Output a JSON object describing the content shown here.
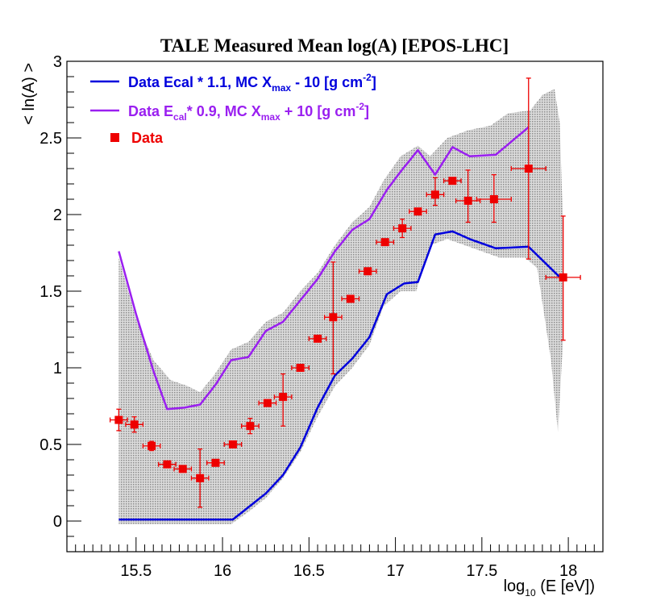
{
  "chart_data": {
    "type": "line",
    "title": "TALE Measured Mean log(A) [EPOS-LHC]",
    "xlabel": "log",
    "xlabel_sub": "10",
    "xlabel_tail": " (E [eV])",
    "ylabel": "< ln(A) >",
    "xlim": [
      15.1,
      18.2
    ],
    "ylim": [
      -0.2,
      3.0
    ],
    "x_major_ticks": [
      15.5,
      16,
      16.5,
      17,
      17.5,
      18
    ],
    "x_tick_labels": [
      "15.5",
      "16",
      "16.5",
      "17",
      "17.5",
      "18"
    ],
    "y_major_ticks": [
      0,
      0.5,
      1,
      1.5,
      2,
      2.5,
      3
    ],
    "y_tick_labels": [
      "0",
      "0.5",
      "1",
      "1.5",
      "2",
      "2.5",
      "3"
    ],
    "colors": {
      "blue": "#0000dd",
      "purple": "#9a1ff0",
      "data": "#ee0000",
      "band": "#b8b8b8"
    },
    "legend": {
      "blue": {
        "pre": "Data Ecal * 1.1,  MC X",
        "sub": "max",
        "mid": " - 10 [g cm",
        "sup": "-2",
        "post": "]"
      },
      "purple": {
        "pre": "Data E",
        "sub1": "cal",
        "mid1": "* 0.9,  MC X",
        "sub2": "max",
        "mid2": " + 10 [g cm",
        "sup": "-2",
        "post": "]"
      },
      "data": "Data"
    },
    "band": {
      "upper": [
        [
          15.4,
          1.72
        ],
        [
          15.5,
          1.32
        ],
        [
          15.6,
          1.05
        ],
        [
          15.7,
          0.92
        ],
        [
          15.8,
          0.88
        ],
        [
          15.87,
          0.84
        ],
        [
          15.95,
          0.95
        ],
        [
          16.05,
          1.12
        ],
        [
          16.15,
          1.17
        ],
        [
          16.25,
          1.3
        ],
        [
          16.35,
          1.36
        ],
        [
          16.45,
          1.5
        ],
        [
          16.55,
          1.62
        ],
        [
          16.65,
          1.8
        ],
        [
          16.75,
          1.95
        ],
        [
          16.85,
          2.05
        ],
        [
          16.93,
          2.22
        ],
        [
          17.03,
          2.38
        ],
        [
          17.13,
          2.45
        ],
        [
          17.2,
          2.38
        ],
        [
          17.3,
          2.5
        ],
        [
          17.42,
          2.55
        ],
        [
          17.55,
          2.58
        ],
        [
          17.65,
          2.66
        ],
        [
          17.78,
          2.68
        ],
        [
          17.85,
          2.78
        ],
        [
          17.92,
          2.82
        ],
        [
          17.95,
          2.6
        ],
        [
          17.97,
          1.9
        ]
      ],
      "lower": [
        [
          17.97,
          1.2
        ],
        [
          17.94,
          0.58
        ],
        [
          17.9,
          1.05
        ],
        [
          17.82,
          1.65
        ],
        [
          17.75,
          1.72
        ],
        [
          17.6,
          1.72
        ],
        [
          17.45,
          1.78
        ],
        [
          17.3,
          1.84
        ],
        [
          17.2,
          1.8
        ],
        [
          17.12,
          1.5
        ],
        [
          17.03,
          1.5
        ],
        [
          16.93,
          1.4
        ],
        [
          16.85,
          1.15
        ],
        [
          16.75,
          1.0
        ],
        [
          16.65,
          0.88
        ],
        [
          16.55,
          0.68
        ],
        [
          16.45,
          0.45
        ],
        [
          16.35,
          0.28
        ],
        [
          16.25,
          0.15
        ],
        [
          16.15,
          0.06
        ],
        [
          16.05,
          -0.02
        ],
        [
          15.9,
          -0.02
        ],
        [
          15.7,
          -0.02
        ],
        [
          15.5,
          -0.02
        ],
        [
          15.4,
          -0.02
        ]
      ]
    },
    "series": [
      {
        "name": "Data Ecal * 1.1, MC Xmax - 10 [g cm-2]",
        "key": "blue",
        "x": [
          15.4,
          15.5,
          15.6,
          15.7,
          15.8,
          15.9,
          16.0,
          16.06,
          16.15,
          16.25,
          16.35,
          16.45,
          16.55,
          16.65,
          16.75,
          16.85,
          16.95,
          17.05,
          17.13,
          17.23,
          17.33,
          17.43,
          17.58,
          17.77,
          17.97
        ],
        "y": [
          0.01,
          0.01,
          0.01,
          0.01,
          0.01,
          0.01,
          0.01,
          0.01,
          0.09,
          0.18,
          0.3,
          0.48,
          0.74,
          0.95,
          1.06,
          1.2,
          1.48,
          1.55,
          1.56,
          1.87,
          1.89,
          1.84,
          1.78,
          1.79,
          1.57
        ]
      },
      {
        "name": "Data Ecal * 0.9, MC Xmax + 10 [g cm-2]",
        "key": "purple",
        "x": [
          15.4,
          15.5,
          15.6,
          15.68,
          15.78,
          15.87,
          15.96,
          16.05,
          16.15,
          16.25,
          16.35,
          16.45,
          16.55,
          16.65,
          16.75,
          16.85,
          16.95,
          17.03,
          17.13,
          17.23,
          17.33,
          17.43,
          17.58,
          17.77
        ],
        "y": [
          1.76,
          1.35,
          0.98,
          0.73,
          0.74,
          0.76,
          0.89,
          1.05,
          1.07,
          1.24,
          1.3,
          1.44,
          1.58,
          1.76,
          1.9,
          1.97,
          2.16,
          2.28,
          2.42,
          2.26,
          2.44,
          2.38,
          2.39,
          2.57
        ]
      }
    ],
    "data_points": {
      "name": "Data",
      "x": [
        15.4,
        15.49,
        15.59,
        15.68,
        15.77,
        15.87,
        15.96,
        16.06,
        16.16,
        16.26,
        16.35,
        16.45,
        16.55,
        16.64,
        16.74,
        16.84,
        16.94,
        17.04,
        17.13,
        17.23,
        17.33,
        17.42,
        17.57,
        17.77,
        17.97
      ],
      "y": [
        0.66,
        0.63,
        0.49,
        0.37,
        0.34,
        0.28,
        0.38,
        0.5,
        0.62,
        0.77,
        0.81,
        1.0,
        1.19,
        1.33,
        1.45,
        1.63,
        1.82,
        1.91,
        2.02,
        2.13,
        2.22,
        2.09,
        2.1,
        2.3,
        1.59
      ],
      "xerr": [
        0.05,
        0.05,
        0.05,
        0.05,
        0.05,
        0.05,
        0.05,
        0.05,
        0.05,
        0.05,
        0.05,
        0.05,
        0.05,
        0.05,
        0.05,
        0.05,
        0.05,
        0.05,
        0.05,
        0.05,
        0.05,
        0.07,
        0.1,
        0.1,
        0.1
      ],
      "yerr_low": [
        0.07,
        0.05,
        0.03,
        0.02,
        0.02,
        0.19,
        0.02,
        0.02,
        0.05,
        0.02,
        0.19,
        0.02,
        0.02,
        0.37,
        0.02,
        0.02,
        0.02,
        0.06,
        0.02,
        0.07,
        0.02,
        0.14,
        0.15,
        0.59,
        0.41
      ],
      "yerr_high": [
        0.07,
        0.05,
        0.03,
        0.02,
        0.02,
        0.19,
        0.02,
        0.02,
        0.05,
        0.02,
        0.15,
        0.02,
        0.02,
        0.36,
        0.02,
        0.02,
        0.02,
        0.06,
        0.02,
        0.11,
        0.02,
        0.2,
        0.16,
        0.59,
        0.4
      ]
    }
  }
}
